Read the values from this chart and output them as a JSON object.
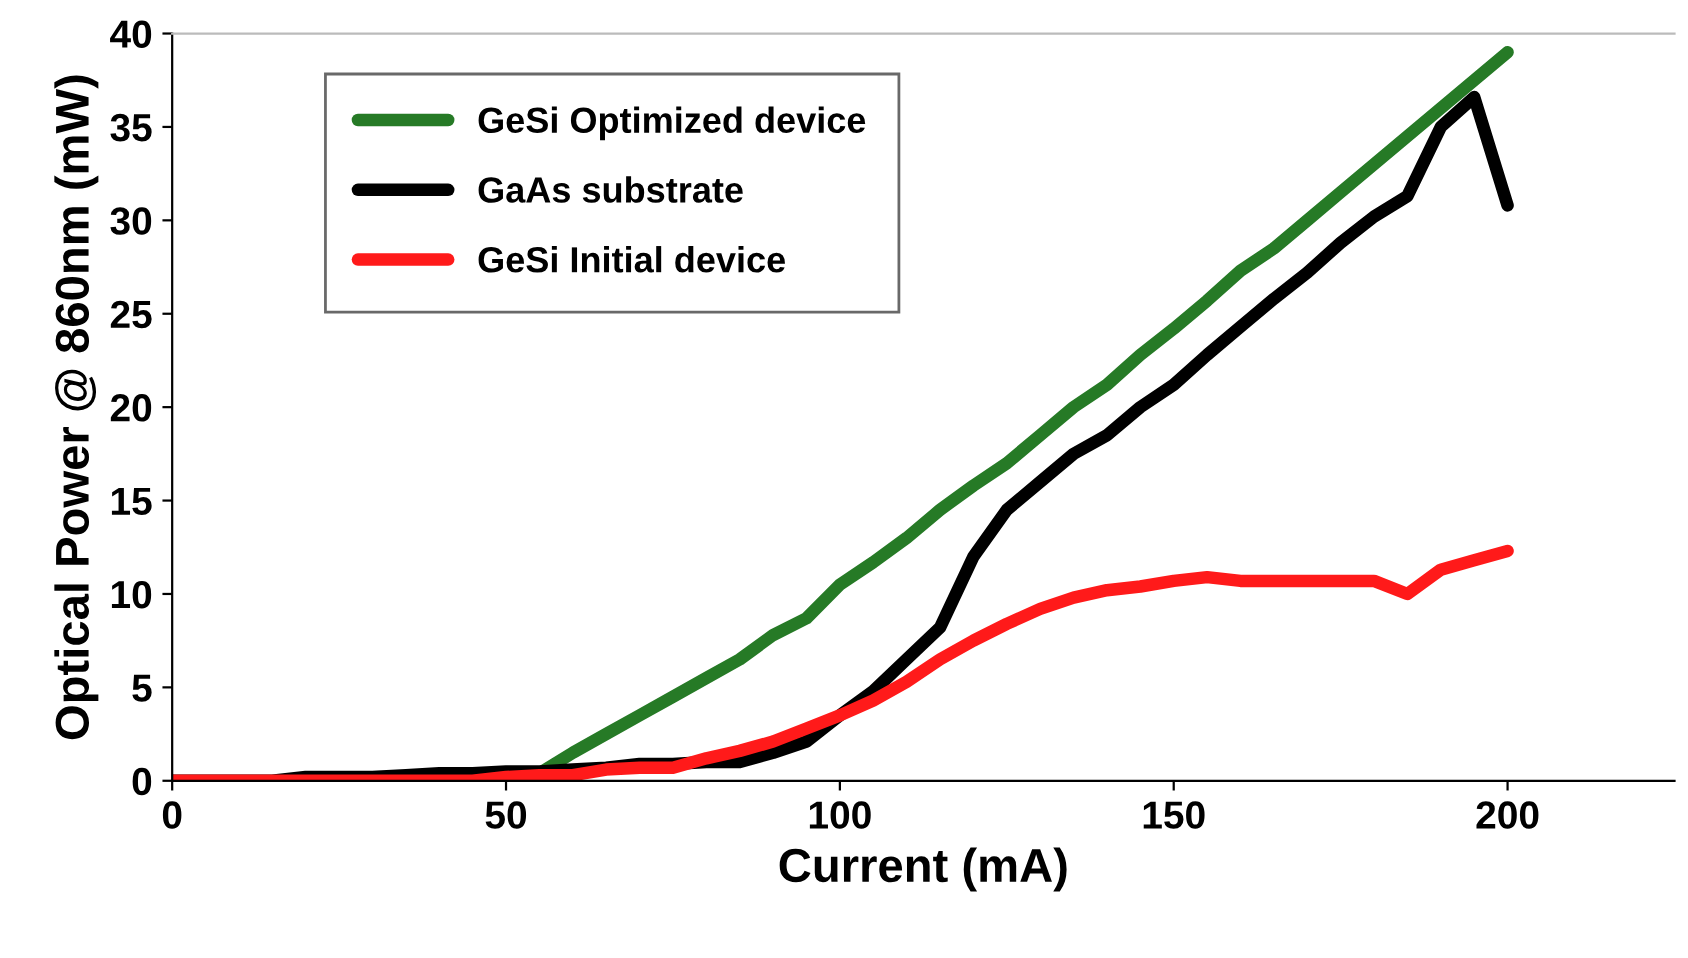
{
  "chart_data": {
    "type": "line",
    "xlabel": "Current (mA)",
    "ylabel": "Optical Power @ 860nm (mW)",
    "x": [
      0,
      5,
      10,
      15,
      20,
      25,
      30,
      35,
      40,
      45,
      50,
      55,
      60,
      65,
      70,
      75,
      80,
      85,
      90,
      95,
      100,
      105,
      110,
      115,
      120,
      125,
      130,
      135,
      140,
      145,
      150,
      155,
      160,
      165,
      170,
      175,
      180,
      185,
      190,
      195,
      200
    ],
    "series": [
      {
        "name": "GeSi Optimized device",
        "color": "#267a26",
        "values": [
          null,
          null,
          null,
          null,
          null,
          null,
          null,
          null,
          null,
          null,
          0.2,
          0.4,
          1.5,
          2.5,
          3.5,
          4.5,
          5.5,
          6.5,
          7.8,
          8.7,
          10.5,
          11.7,
          13,
          14.5,
          15.8,
          17,
          18.5,
          20,
          21.2,
          22.8,
          24.2,
          25.7,
          27.3,
          28.5,
          30,
          31.5,
          33,
          34.5,
          36,
          37.5,
          39
        ]
      },
      {
        "name": "GaAs substrate",
        "color": "#000000",
        "values": [
          0,
          0,
          0,
          0,
          0.2,
          0.2,
          0.2,
          0.3,
          0.4,
          0.4,
          0.5,
          0.5,
          0.6,
          0.7,
          0.9,
          0.9,
          1.0,
          1.0,
          1.5,
          2.1,
          3.5,
          4.8,
          6.5,
          8.2,
          12,
          14.5,
          16,
          17.5,
          18.5,
          20,
          21.2,
          22.8,
          24.3,
          25.8,
          27.2,
          28.8,
          30.2,
          31.3,
          35,
          36.6,
          30.8
        ]
      },
      {
        "name": "GeSi Initial device",
        "color": "#ff1a1a",
        "values": [
          0,
          0,
          0,
          0,
          0,
          0,
          0,
          0,
          0,
          0,
          0.2,
          0.3,
          0.3,
          0.6,
          0.7,
          0.7,
          1.2,
          1.6,
          2.1,
          2.8,
          3.5,
          4.3,
          5.3,
          6.5,
          7.5,
          8.4,
          9.2,
          9.8,
          10.2,
          10.4,
          10.7,
          10.9,
          10.7,
          10.7,
          10.7,
          10.7,
          10.7,
          10.0,
          11.3,
          11.8,
          12.3
        ]
      }
    ],
    "xlim": [
      0,
      225
    ],
    "xticks": [
      0,
      50,
      100,
      150,
      200
    ],
    "ylim": [
      0,
      40
    ],
    "yticks": [
      0,
      5,
      10,
      15,
      20,
      25,
      30,
      35,
      40
    ],
    "grid": false,
    "legend": "top left",
    "marker": "none",
    "line_style": "solid"
  }
}
